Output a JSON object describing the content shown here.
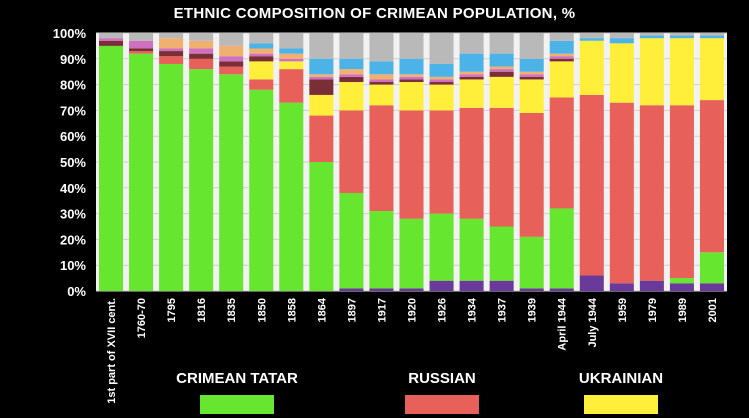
{
  "chart_data": {
    "type": "bar",
    "stacked": true,
    "title": "ETHNIC COMPOSITION OF CRIMEAN POPULATION, %",
    "ylim": [
      0,
      100
    ],
    "y_ticks": [
      "0%",
      "10%",
      "20%",
      "30%",
      "40%",
      "50%",
      "60%",
      "70%",
      "80%",
      "90%",
      "100%"
    ],
    "categories": [
      "1st part of XVII cent.",
      "1760-70",
      "1795",
      "1816",
      "1835",
      "1850",
      "1858",
      "1864",
      "1897",
      "1917",
      "1920",
      "1926",
      "1934",
      "1937",
      "1939",
      "April 1944",
      "July 1944",
      "1959",
      "1979",
      "1989",
      "2001"
    ],
    "colors": {
      "background": "#000000",
      "crimean_tatar": "#66e62e",
      "russian": "#e8605a",
      "ukrainian": "#ffef3a",
      "others_light_blue": "#4bb3e8",
      "others_grey": "#b9b9b9",
      "others_purple": "#6a3a9a",
      "others_brown": "#7a2e35",
      "others_pink": "#d070c0",
      "others_orange": "#f0b070"
    },
    "series": [
      {
        "name": "Others (purple)",
        "color": "#6a3a9a",
        "values": [
          0,
          0,
          0,
          0,
          0,
          0,
          0,
          0,
          1,
          1,
          1,
          4,
          4,
          4,
          1,
          1,
          6,
          3,
          4,
          3,
          3
        ]
      },
      {
        "name": "Crimean Tatar",
        "color": "#66e62e",
        "values": [
          95,
          92,
          88,
          86,
          84,
          78,
          73,
          50,
          37,
          30,
          27,
          26,
          24,
          21,
          20,
          31,
          0,
          0,
          0,
          2,
          12
        ]
      },
      {
        "name": "Russian",
        "color": "#e8605a",
        "values": [
          0,
          1,
          3,
          4,
          3,
          4,
          13,
          18,
          32,
          41,
          42,
          40,
          43,
          46,
          48,
          43,
          70,
          70,
          68,
          67,
          59
        ]
      },
      {
        "name": "Ukrainian",
        "color": "#ffef3a",
        "values": [
          0,
          0,
          0,
          0,
          0,
          7,
          3,
          8,
          11,
          8,
          11,
          10,
          11,
          12,
          13,
          14,
          21,
          23,
          26,
          26,
          24
        ]
      },
      {
        "name": "Others (brown)",
        "color": "#7a2e35",
        "values": [
          2,
          1,
          2,
          2,
          2,
          2,
          0,
          6,
          2,
          1,
          1,
          1,
          1,
          2,
          1,
          1,
          0,
          0,
          0,
          0,
          0
        ]
      },
      {
        "name": "Others (pink)",
        "color": "#d070c0",
        "values": [
          1,
          3,
          1,
          2,
          2,
          1,
          1,
          1,
          1,
          1,
          1,
          1,
          1,
          1,
          1,
          1,
          0,
          0,
          0,
          0,
          0
        ]
      },
      {
        "name": "Others (orange)",
        "color": "#f0b070",
        "values": [
          0,
          0,
          4,
          3,
          4,
          2,
          2,
          1,
          2,
          2,
          1,
          1,
          1,
          1,
          1,
          1,
          0,
          0,
          0,
          0,
          0
        ]
      },
      {
        "name": "Others (light blue)",
        "color": "#4bb3e8",
        "values": [
          0,
          0,
          0,
          0,
          0,
          2,
          2,
          6,
          4,
          5,
          6,
          5,
          7,
          5,
          5,
          5,
          1,
          2,
          1,
          1,
          1
        ]
      },
      {
        "name": "Others (grey)",
        "color": "#b9b9b9",
        "values": [
          2,
          3,
          2,
          3,
          5,
          4,
          6,
          10,
          10,
          11,
          10,
          12,
          8,
          8,
          10,
          3,
          2,
          2,
          1,
          1,
          1
        ]
      }
    ]
  },
  "legend": [
    {
      "label": "CRIMEAN TATAR",
      "color": "#66e62e"
    },
    {
      "label": "RUSSIAN",
      "color": "#e8605a"
    },
    {
      "label": "UKRAINIAN",
      "color": "#ffef3a"
    }
  ]
}
